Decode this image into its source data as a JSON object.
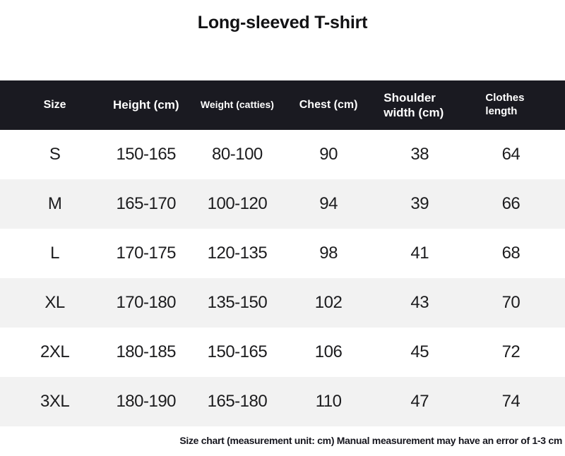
{
  "colors": {
    "header_bg": "#1a1a21",
    "header_text": "#ffffff",
    "row_bg": "#ffffff",
    "row_alt_bg": "#f2f2f2",
    "body_text": "#1c1c1e"
  },
  "chart_data": {
    "type": "table",
    "title": "Long-sleeved T-shirt",
    "columns": [
      "Size",
      "Height (cm)",
      "Weight (catties)",
      "Chest (cm)",
      "Shoulder width (cm)",
      "Clothes length"
    ],
    "rows": [
      [
        "S",
        "150-165",
        "80-100",
        "90",
        "38",
        "64"
      ],
      [
        "M",
        "165-170",
        "100-120",
        "94",
        "39",
        "66"
      ],
      [
        "L",
        "170-175",
        "120-135",
        "98",
        "41",
        "68"
      ],
      [
        "XL",
        "170-180",
        "135-150",
        "102",
        "43",
        "70"
      ],
      [
        "2XL",
        "180-185",
        "150-165",
        "106",
        "45",
        "72"
      ],
      [
        "3XL",
        "180-190",
        "165-180",
        "110",
        "47",
        "74"
      ]
    ],
    "footnote": "Size chart (measurement unit: cm) Manual measurement may have an error of 1-3 cm",
    "layout": {
      "header_style": "dark-band",
      "row_striping": "white-then-gray",
      "grid": "off"
    }
  }
}
